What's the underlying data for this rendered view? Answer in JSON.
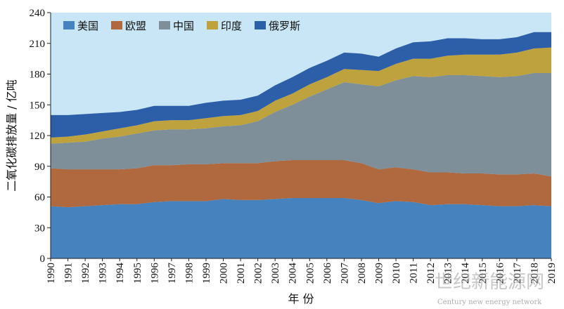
{
  "chart_data": {
    "type": "area",
    "stacked": true,
    "xlabel": "年 份",
    "ylabel": "二氧化碳排放量 / 亿吨",
    "ylim": [
      0,
      240
    ],
    "yticks": [
      0,
      30,
      60,
      90,
      120,
      150,
      180,
      210,
      240
    ],
    "x": [
      "1990",
      "1991",
      "1992",
      "1993",
      "1994",
      "1995",
      "1996",
      "1997",
      "1998",
      "1999",
      "2000",
      "2001",
      "2002",
      "2003",
      "2004",
      "2005",
      "2006",
      "2007",
      "2008",
      "2009",
      "2010",
      "2011",
      "2012",
      "2013",
      "2014",
      "2015",
      "2016",
      "2017",
      "2018",
      "2019"
    ],
    "legend_position": "top-left",
    "grid": false,
    "background_color": "#c8e6f5",
    "series": [
      {
        "name": "美国",
        "color": "#4582be",
        "values": [
          51,
          50,
          51,
          52,
          53,
          53,
          55,
          56,
          56,
          56,
          58,
          57,
          57,
          58,
          59,
          59,
          59,
          59,
          57,
          54,
          56,
          55,
          52,
          53,
          53,
          52,
          51,
          51,
          52,
          51
        ]
      },
      {
        "name": "欧盟",
        "color": "#b0693e",
        "values": [
          37,
          37,
          36,
          35,
          34,
          35,
          36,
          35,
          36,
          36,
          35,
          36,
          36,
          37,
          37,
          37,
          37,
          37,
          36,
          33,
          33,
          32,
          32,
          31,
          30,
          31,
          31,
          31,
          31,
          29
        ]
      },
      {
        "name": "中国",
        "color": "#7e8f99",
        "values": [
          24,
          26,
          27,
          30,
          32,
          34,
          34,
          35,
          34,
          35,
          36,
          37,
          41,
          48,
          54,
          62,
          69,
          76,
          77,
          81,
          85,
          91,
          93,
          95,
          96,
          95,
          95,
          96,
          98,
          101
        ]
      },
      {
        "name": "印度",
        "color": "#bea23e",
        "values": [
          6,
          6,
          7,
          7,
          8,
          8,
          9,
          9,
          9,
          10,
          10,
          10,
          10,
          11,
          11,
          12,
          12,
          13,
          14,
          15,
          16,
          17,
          18,
          19,
          20,
          21,
          22,
          23,
          24,
          25
        ]
      },
      {
        "name": "俄罗斯",
        "color": "#2d5ea8",
        "values": [
          22,
          21,
          20,
          18,
          16,
          15,
          15,
          14,
          14,
          15,
          15,
          15,
          15,
          15,
          16,
          16,
          16,
          16,
          16,
          14,
          15,
          16,
          17,
          17,
          16,
          15,
          15,
          15,
          16,
          15
        ]
      }
    ]
  },
  "watermark": {
    "text_cn": "世纪新能源网",
    "text_en": "Century new energy network"
  }
}
